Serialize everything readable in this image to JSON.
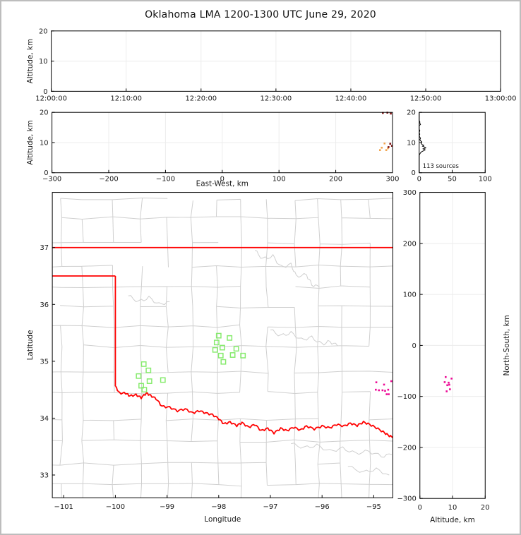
{
  "title": "Oklahoma LMA 1200-1300 UTC June 29, 2020",
  "colors": {
    "axis": "#000000",
    "grid": "#ececec",
    "county": "#cfcfcf",
    "state_border": "#ff0000",
    "station_marker": "#87EB6E",
    "source_magenta": "#EC0A96",
    "source_orange": "#F2A44C",
    "source_darkred": "#7E1010",
    "histogram_line": "#000000",
    "tick_text": "#1a1a1a"
  },
  "chart_data": [
    {
      "id": "time-height",
      "type": "scatter",
      "xlabel": "",
      "ylabel": "Altitude, km",
      "xlim_minutes": [
        0,
        60
      ],
      "ylim": [
        0,
        20
      ],
      "xticks": {
        "minutes": [
          0,
          10,
          20,
          30,
          40,
          50,
          60
        ],
        "labels": [
          "12:00:00",
          "12:10:00",
          "12:20:00",
          "12:30:00",
          "12:40:00",
          "12:50:00",
          "13:00:00"
        ]
      },
      "yticks": {
        "values": [
          0,
          10,
          20
        ],
        "labels": [
          "0",
          "10",
          "20"
        ]
      },
      "points": []
    },
    {
      "id": "ew-height",
      "type": "scatter",
      "xlabel": "East-West, km",
      "ylabel": "Altitude, km",
      "xlim": [
        -300,
        300
      ],
      "ylim": [
        0,
        20
      ],
      "xticks": {
        "values": [
          -300,
          -200,
          -100,
          0,
          100,
          200,
          300
        ],
        "labels": [
          "−300",
          "−200",
          "−100",
          "0",
          "100",
          "200",
          "300"
        ]
      },
      "yticks": {
        "values": [
          0,
          10,
          20
        ],
        "labels": [
          "0",
          "10",
          "20"
        ]
      },
      "points": [
        {
          "x": 286,
          "y": 9.7,
          "color": "#F2A44C"
        },
        {
          "x": 278,
          "y": 7.5,
          "color": "#F2A44C"
        },
        {
          "x": 289,
          "y": 7.5,
          "color": "#F2A44C"
        },
        {
          "x": 281,
          "y": 8.3,
          "color": "#F2A44C"
        },
        {
          "x": 292,
          "y": 8.1,
          "color": "#F2A44C"
        },
        {
          "x": 296,
          "y": 9.6,
          "color": "#7E1010"
        },
        {
          "x": 299,
          "y": 8.9,
          "color": "#7E1010"
        },
        {
          "x": 293,
          "y": 8.5,
          "color": "#7E1010"
        },
        {
          "x": 283,
          "y": 19.8,
          "color": "#7E1010"
        },
        {
          "x": 291,
          "y": 19.9,
          "color": "#7E1010"
        },
        {
          "x": 297,
          "y": 19.6,
          "color": "#7E1010"
        }
      ]
    },
    {
      "id": "source-histogram",
      "type": "line",
      "annotation": "113 sources",
      "xlabel": "",
      "ylabel": "",
      "xlim": [
        0,
        100
      ],
      "ylim": [
        0,
        20
      ],
      "xticks": {
        "values": [
          0,
          50,
          100
        ],
        "labels": [
          "0",
          "50",
          "100"
        ]
      },
      "yticks": {
        "values": [
          0,
          10,
          20
        ],
        "labels": [
          "0",
          "10",
          "20"
        ]
      },
      "profile_alt_count": [
        [
          0,
          0
        ],
        [
          5.8,
          0
        ],
        [
          6.2,
          1
        ],
        [
          6.6,
          2
        ],
        [
          7.0,
          4
        ],
        [
          7.3,
          7
        ],
        [
          7.6,
          9
        ],
        [
          7.9,
          6
        ],
        [
          8.2,
          10
        ],
        [
          8.5,
          8
        ],
        [
          8.8,
          5
        ],
        [
          9.1,
          7
        ],
        [
          9.4,
          4
        ],
        [
          9.8,
          3
        ],
        [
          10.2,
          4
        ],
        [
          10.6,
          2
        ],
        [
          11.0,
          1
        ],
        [
          11.4,
          2
        ],
        [
          11.8,
          1
        ],
        [
          12.2,
          0
        ],
        [
          12.8,
          1
        ],
        [
          13.2,
          0
        ],
        [
          14.0,
          1
        ],
        [
          14.4,
          0
        ],
        [
          15.6,
          0
        ],
        [
          16.0,
          2
        ],
        [
          16.4,
          1
        ],
        [
          16.9,
          1
        ],
        [
          17.3,
          0
        ],
        [
          20,
          0
        ]
      ]
    },
    {
      "id": "plan-view",
      "type": "map-scatter",
      "xlabel": "Longitude",
      "ylabel": "Latitude",
      "xlim": [
        -101.22,
        -94.63
      ],
      "ylim": [
        32.6,
        37.97
      ],
      "xticks": {
        "values": [
          -101,
          -100,
          -99,
          -98,
          -97,
          -96,
          -95
        ],
        "labels": [
          "−101",
          "−100",
          "−99",
          "−98",
          "−97",
          "−96",
          "−95"
        ]
      },
      "yticks": {
        "values": [
          33,
          34,
          35,
          36,
          37
        ],
        "labels": [
          "33",
          "34",
          "35",
          "36",
          "37"
        ]
      },
      "stations": [
        [
          -99.45,
          34.95
        ],
        [
          -99.36,
          34.84
        ],
        [
          -99.55,
          34.74
        ],
        [
          -99.08,
          34.67
        ],
        [
          -99.34,
          34.65
        ],
        [
          -99.5,
          34.57
        ],
        [
          -99.44,
          34.5
        ],
        [
          -98.0,
          35.45
        ],
        [
          -97.79,
          35.41
        ],
        [
          -98.04,
          35.33
        ],
        [
          -97.93,
          35.24
        ],
        [
          -98.07,
          35.2
        ],
        [
          -97.66,
          35.22
        ],
        [
          -97.96,
          35.1
        ],
        [
          -97.73,
          35.11
        ],
        [
          -97.53,
          35.1
        ],
        [
          -97.91,
          34.99
        ]
      ],
      "sources": [
        [
          -94.95,
          34.63
        ],
        [
          -94.8,
          34.59
        ],
        [
          -94.66,
          34.65
        ],
        [
          -94.96,
          34.5
        ],
        [
          -94.9,
          34.49
        ],
        [
          -94.83,
          34.49
        ],
        [
          -94.78,
          34.48
        ],
        [
          -94.72,
          34.5
        ],
        [
          -94.75,
          34.42
        ],
        [
          -94.71,
          34.42
        ]
      ],
      "state_border": {
        "segments": [
          [
            [
              -101.25,
              37.0
            ],
            [
              -94.6,
              37.0
            ]
          ],
          [
            [
              -101.25,
              36.5
            ],
            [
              -100.0,
              36.5
            ]
          ],
          [
            [
              -100.0,
              36.5
            ],
            [
              -100.0,
              34.56
            ]
          ]
        ],
        "red_river": [
          [
            -100.0,
            34.56
          ],
          [
            -99.92,
            34.44
          ],
          [
            -99.8,
            34.44
          ],
          [
            -99.72,
            34.39
          ],
          [
            -99.6,
            34.41
          ],
          [
            -99.5,
            34.36
          ],
          [
            -99.4,
            34.44
          ],
          [
            -99.32,
            34.4
          ],
          [
            -99.21,
            34.34
          ],
          [
            -99.1,
            34.21
          ],
          [
            -98.95,
            34.19
          ],
          [
            -98.8,
            34.13
          ],
          [
            -98.65,
            34.16
          ],
          [
            -98.5,
            34.09
          ],
          [
            -98.38,
            34.13
          ],
          [
            -98.25,
            34.09
          ],
          [
            -98.12,
            34.06
          ],
          [
            -98.0,
            33.99
          ],
          [
            -97.9,
            33.9
          ],
          [
            -97.78,
            33.93
          ],
          [
            -97.65,
            33.87
          ],
          [
            -97.55,
            33.92
          ],
          [
            -97.42,
            33.84
          ],
          [
            -97.3,
            33.89
          ],
          [
            -97.18,
            33.78
          ],
          [
            -97.05,
            33.82
          ],
          [
            -96.93,
            33.74
          ],
          [
            -96.8,
            33.82
          ],
          [
            -96.68,
            33.78
          ],
          [
            -96.55,
            33.84
          ],
          [
            -96.42,
            33.79
          ],
          [
            -96.3,
            33.86
          ],
          [
            -96.15,
            33.81
          ],
          [
            -96.0,
            33.86
          ],
          [
            -95.85,
            33.83
          ],
          [
            -95.72,
            33.89
          ],
          [
            -95.58,
            33.86
          ],
          [
            -95.45,
            33.91
          ],
          [
            -95.32,
            33.87
          ],
          [
            -95.2,
            33.93
          ],
          [
            -95.08,
            33.89
          ],
          [
            -94.95,
            33.83
          ],
          [
            -94.82,
            33.76
          ],
          [
            -94.72,
            33.7
          ],
          [
            -94.63,
            33.66
          ]
        ]
      },
      "rivers": [
        [
          [
            -97.3,
            36.95
          ],
          [
            -97.15,
            36.8
          ],
          [
            -96.95,
            36.85
          ],
          [
            -96.8,
            36.66
          ],
          [
            -96.6,
            36.7
          ],
          [
            -96.5,
            36.5
          ],
          [
            -96.3,
            36.52
          ],
          [
            -96.2,
            36.35
          ],
          [
            -96.05,
            36.3
          ]
        ],
        [
          [
            -97.0,
            35.55
          ],
          [
            -96.8,
            35.45
          ],
          [
            -96.6,
            35.5
          ],
          [
            -96.4,
            35.38
          ],
          [
            -96.2,
            35.42
          ],
          [
            -96.0,
            35.3
          ],
          [
            -95.85,
            35.35
          ],
          [
            -95.7,
            35.27
          ]
        ],
        [
          [
            -96.6,
            33.55
          ],
          [
            -96.35,
            33.48
          ],
          [
            -96.1,
            33.52
          ],
          [
            -95.85,
            33.42
          ],
          [
            -95.6,
            33.47
          ],
          [
            -95.35,
            33.38
          ],
          [
            -95.1,
            33.42
          ],
          [
            -94.85,
            33.33
          ],
          [
            -94.65,
            33.36
          ]
        ],
        [
          [
            -95.5,
            33.15
          ],
          [
            -95.2,
            33.05
          ],
          [
            -94.95,
            33.1
          ],
          [
            -94.7,
            33.0
          ]
        ],
        [
          [
            -99.75,
            36.15
          ],
          [
            -99.55,
            36.05
          ],
          [
            -99.35,
            36.12
          ],
          [
            -99.15,
            36.0
          ],
          [
            -98.95,
            36.05
          ]
        ]
      ]
    },
    {
      "id": "ns-height",
      "type": "scatter",
      "xlabel": "Altitude, km",
      "ylabel": "North-South, km",
      "xlim": [
        0,
        20
      ],
      "ylim": [
        -300,
        300
      ],
      "xticks": {
        "values": [
          0,
          10,
          20
        ],
        "labels": [
          "0",
          "10",
          "20"
        ]
      },
      "yticks": {
        "values": [
          300,
          200,
          100,
          0,
          -100,
          -200,
          -300
        ],
        "labels": [
          "300",
          "200",
          "100",
          "0",
          "−100",
          "−200",
          "−300"
        ]
      },
      "points": [
        {
          "x": 7.9,
          "y": -62
        },
        {
          "x": 9.7,
          "y": -65
        },
        {
          "x": 7.6,
          "y": -72
        },
        {
          "x": 8.4,
          "y": -78
        },
        {
          "x": 9.0,
          "y": -77
        },
        {
          "x": 9.2,
          "y": -86
        },
        {
          "x": 8.2,
          "y": -90
        },
        {
          "x": 8.8,
          "y": -73
        }
      ]
    }
  ]
}
